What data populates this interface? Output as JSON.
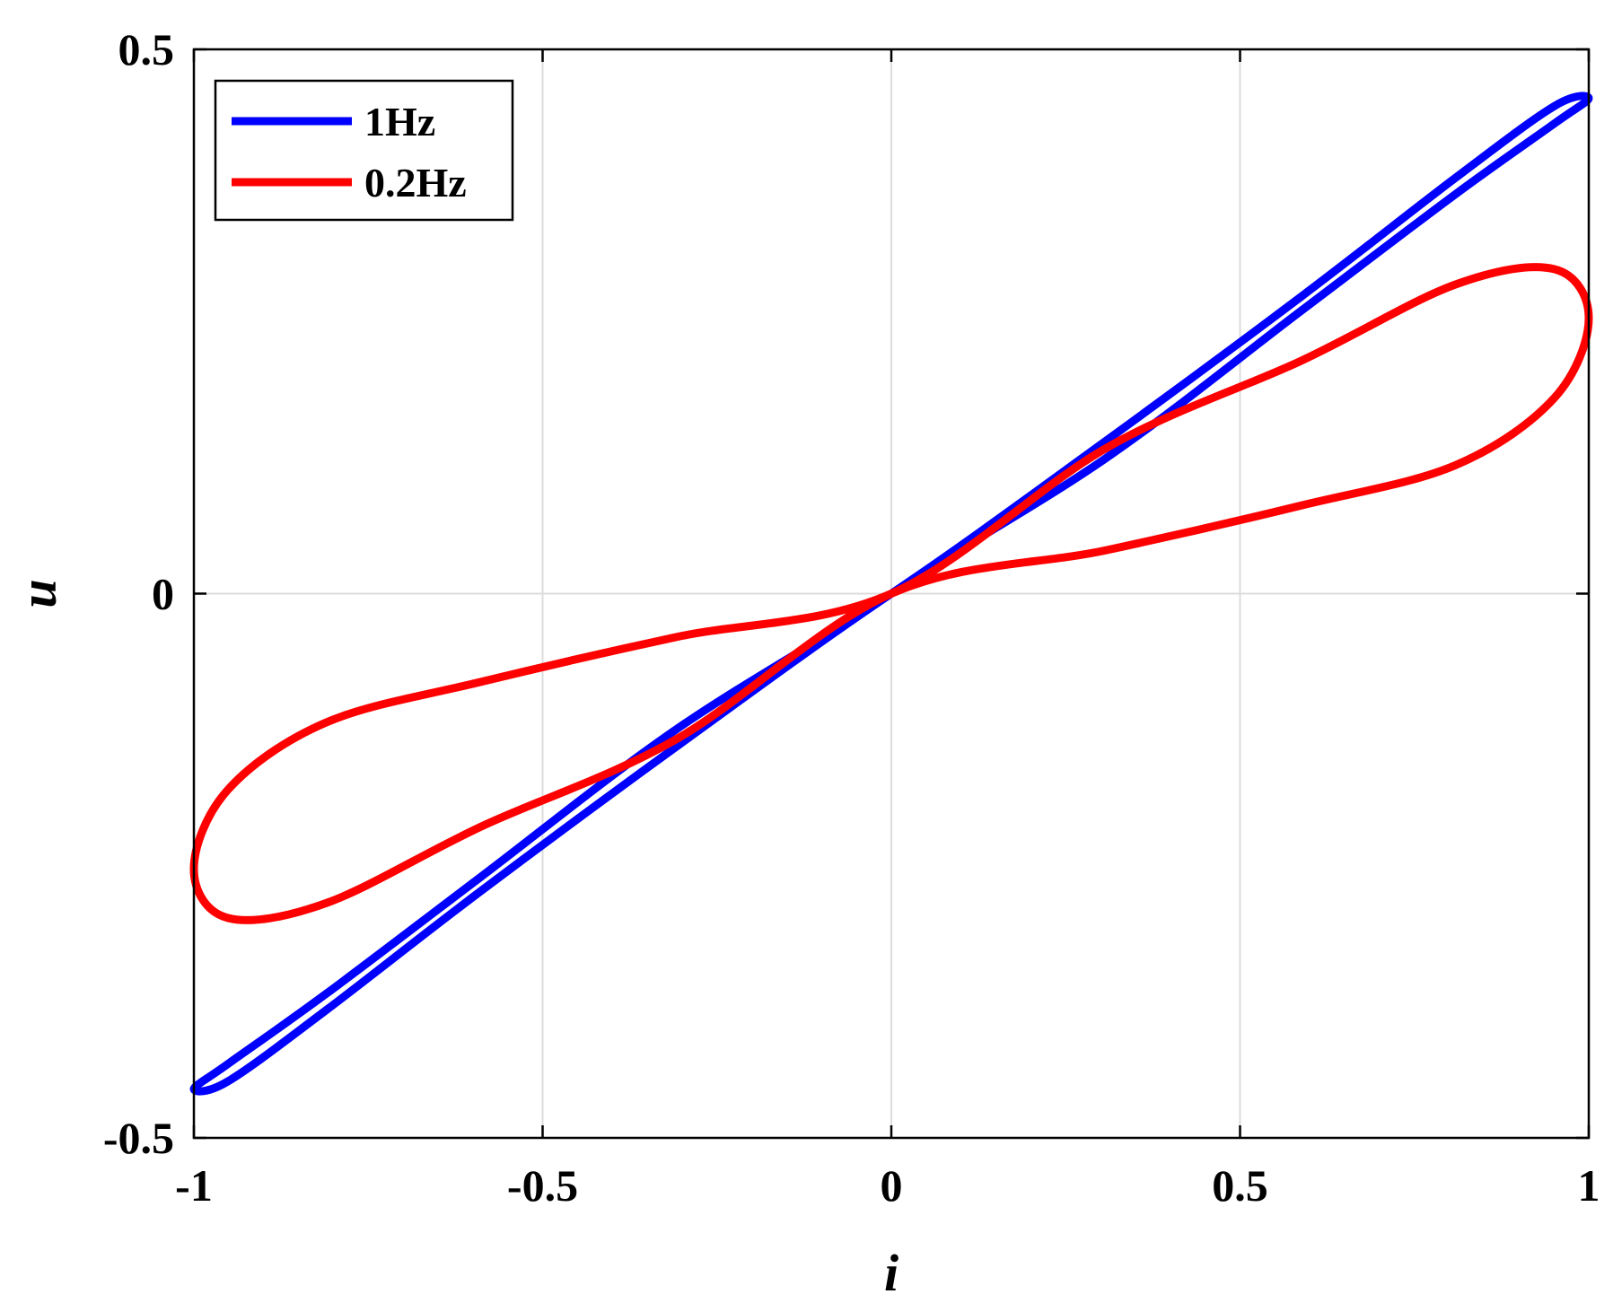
{
  "chart_data": {
    "type": "line",
    "title": "",
    "xlabel": "i",
    "ylabel": "u",
    "xlim": [
      -1,
      1
    ],
    "ylim": [
      -0.5,
      0.5
    ],
    "xticks": [
      -1,
      -0.5,
      0,
      0.5,
      1
    ],
    "xtick_labels": [
      "-1",
      "-0.5",
      "0",
      "0.5",
      "1"
    ],
    "yticks": [
      -0.5,
      0,
      0.5
    ],
    "ytick_labels": [
      "-0.5",
      "0",
      "0.5"
    ],
    "grid": true,
    "legend_position": "top-left",
    "series": [
      {
        "name": "1Hz",
        "color": "#0000ff",
        "x": [
          0,
          0.309,
          0.588,
          0.809,
          0.951,
          1.0,
          0.951,
          0.809,
          0.588,
          0.309,
          0,
          -0.309,
          -0.588,
          -0.809,
          -0.951,
          -1.0,
          -0.951,
          -0.809,
          -0.588,
          -0.309,
          0
        ],
        "y": [
          0,
          0.141,
          0.273,
          0.382,
          0.448,
          0.455,
          0.432,
          0.367,
          0.26,
          0.125,
          0,
          -0.141,
          -0.273,
          -0.382,
          -0.448,
          -0.455,
          -0.432,
          -0.367,
          -0.26,
          -0.125,
          0
        ]
      },
      {
        "name": "0.2Hz",
        "color": "#ff0000",
        "x": [
          0,
          0.309,
          0.588,
          0.809,
          0.951,
          1.0,
          0.951,
          0.809,
          0.588,
          0.309,
          0,
          -0.309,
          -0.588,
          -0.809,
          -0.951,
          -1.0,
          -0.951,
          -0.809,
          -0.588,
          -0.309,
          0
        ],
        "y": [
          0,
          0.134,
          0.214,
          0.284,
          0.298,
          0.253,
          0.18,
          0.118,
          0.081,
          0.04,
          0,
          -0.134,
          -0.214,
          -0.284,
          -0.298,
          -0.253,
          -0.18,
          -0.118,
          -0.081,
          -0.04,
          0
        ]
      }
    ]
  }
}
